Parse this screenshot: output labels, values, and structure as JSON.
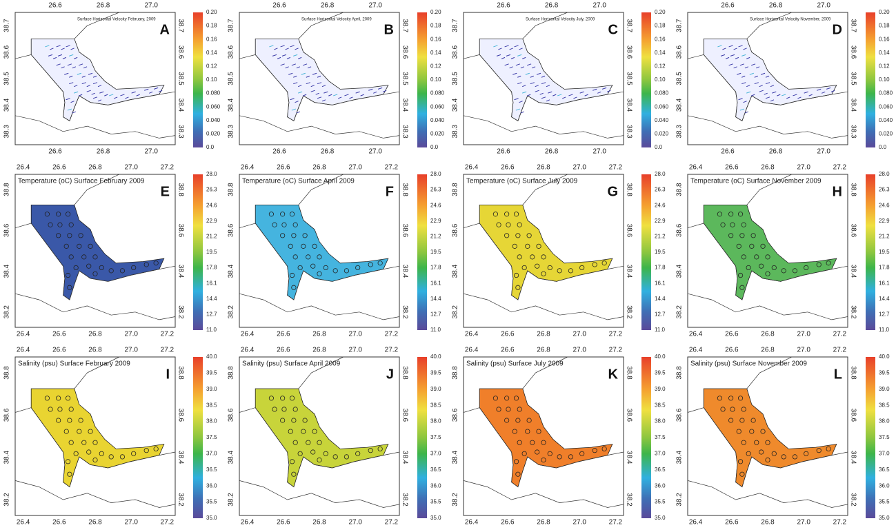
{
  "panels": [
    {
      "letter": "A",
      "title": "Surface Horizontal Velocity February, 2009",
      "lon_ticks_top": [
        "26.6",
        "26.8",
        "27.0"
      ],
      "lon_ticks_bottom": [
        "26.6",
        "26.8",
        "27.0"
      ],
      "lat_ticks_left": [
        "38.7",
        "38.6",
        "38.5",
        "38.4",
        "38.3"
      ],
      "lat_ticks_right": [
        "38.7",
        "38.6",
        "38.5",
        "38.4",
        "38.3"
      ],
      "colorbar_ticks": [
        "0.20",
        "0.18",
        "0.16",
        "0.14",
        "0.12",
        "0.10",
        "0.080",
        "0.060",
        "0.040",
        "0.020",
        "0.0"
      ]
    },
    {
      "letter": "B",
      "title": "Surface Horizontal Velocity April, 2009",
      "lon_ticks_top": [
        "26.6",
        "26.8",
        "27.0"
      ],
      "lon_ticks_bottom": [
        "26.6",
        "26.8",
        "27.0"
      ],
      "lat_ticks_left": [
        "38.7",
        "38.6",
        "38.5",
        "38.4",
        "38.3"
      ],
      "lat_ticks_right": [
        "38.7",
        "38.6",
        "38.5",
        "38.4",
        "38.3"
      ],
      "colorbar_ticks": [
        "0.20",
        "0.18",
        "0.16",
        "0.14",
        "0.12",
        "0.10",
        "0.080",
        "0.060",
        "0.040",
        "0.020",
        "0.0"
      ]
    },
    {
      "letter": "C",
      "title": "Surface Horizontal Velocity July, 2009",
      "lon_ticks_top": [
        "26.6",
        "26.8",
        "27.0"
      ],
      "lon_ticks_bottom": [
        "26.6",
        "26.8",
        "27.0"
      ],
      "lat_ticks_left": [
        "38.7",
        "38.6",
        "38.5",
        "38.4",
        "38.3"
      ],
      "lat_ticks_right": [
        "38.7",
        "38.6",
        "38.5",
        "38.4",
        "38.3"
      ],
      "colorbar_ticks": [
        "0.20",
        "0.18",
        "0.16",
        "0.14",
        "0.12",
        "0.10",
        "0.080",
        "0.060",
        "0.040",
        "0.020",
        "0.0"
      ]
    },
    {
      "letter": "D",
      "title": "Surface Horizontal Velocity November, 2009",
      "lon_ticks_top": [
        "26.6",
        "26.8",
        "27.0"
      ],
      "lon_ticks_bottom": [
        "26.6",
        "26.8",
        "27.0"
      ],
      "lat_ticks_left": [
        "38.7",
        "38.6",
        "38.5",
        "38.4",
        "38.3"
      ],
      "lat_ticks_right": [
        "38.7",
        "38.6",
        "38.5",
        "38.4",
        "38.3"
      ],
      "colorbar_ticks": [
        "0.20",
        "0.18",
        "0.16",
        "0.14",
        "0.12",
        "0.10",
        "0.080",
        "0.060",
        "0.040",
        "0.020",
        "0.0"
      ]
    },
    {
      "letter": "E",
      "title": "Temperature (oC) Surface February 2009",
      "lon_ticks_top": [
        "26.4",
        "26.6",
        "26.8",
        "27.0",
        "27.2"
      ],
      "lon_ticks_bottom": [
        "26.4",
        "26.6",
        "26.8",
        "27.0",
        "27.2"
      ],
      "lat_ticks_left": [
        "38.8",
        "38.6",
        "38.4",
        "38.2"
      ],
      "lat_ticks_right": [
        "38.8",
        "38.6",
        "38.4",
        "38.2"
      ],
      "colorbar_ticks": [
        "28.0",
        "26.3",
        "24.6",
        "22.9",
        "21.2",
        "19.5",
        "17.8",
        "16.1",
        "14.4",
        "12.7",
        "11.0"
      ]
    },
    {
      "letter": "F",
      "title": "Temperature (oC) Surface April 2009",
      "lon_ticks_top": [
        "26.4",
        "26.6",
        "26.8",
        "27.0",
        "27.2"
      ],
      "lon_ticks_bottom": [
        "26.4",
        "26.6",
        "26.8",
        "27.0",
        "27.2"
      ],
      "lat_ticks_left": [
        "38.8",
        "38.6",
        "38.4",
        "38.2"
      ],
      "lat_ticks_right": [
        "38.8",
        "38.6",
        "38.4",
        "38.2"
      ],
      "colorbar_ticks": [
        "28.0",
        "26.3",
        "24.6",
        "22.9",
        "21.2",
        "19.5",
        "17.8",
        "16.1",
        "14.4",
        "12.7",
        "11.0"
      ]
    },
    {
      "letter": "G",
      "title": "Temperature (oC) Surface July 2009",
      "lon_ticks_top": [
        "26.4",
        "26.6",
        "26.8",
        "27.0",
        "27.2"
      ],
      "lon_ticks_bottom": [
        "26.4",
        "26.6",
        "26.8",
        "27.0",
        "27.2"
      ],
      "lat_ticks_left": [
        "38.8",
        "38.6",
        "38.4",
        "38.2"
      ],
      "lat_ticks_right": [
        "38.8",
        "38.6",
        "38.4",
        "38.2"
      ],
      "colorbar_ticks": [
        "28.0",
        "26.3",
        "24.6",
        "22.9",
        "21.2",
        "19.5",
        "17.8",
        "16.1",
        "14.4",
        "12.7",
        "11.0"
      ]
    },
    {
      "letter": "H",
      "title": "Temperature (oC) Surface November 2009",
      "lon_ticks_top": [
        "26.4",
        "26.6",
        "26.8",
        "27.0",
        "27.2"
      ],
      "lon_ticks_bottom": [
        "26.4",
        "26.6",
        "26.8",
        "27.0",
        "27.2"
      ],
      "lat_ticks_left": [
        "38.8",
        "38.6",
        "38.4",
        "38.2"
      ],
      "lat_ticks_right": [
        "38.8",
        "38.6",
        "38.4",
        "38.2"
      ],
      "colorbar_ticks": [
        "28.0",
        "26.3",
        "24.6",
        "22.9",
        "21.2",
        "19.5",
        "17.8",
        "16.1",
        "14.4",
        "12.7",
        "11.0"
      ]
    },
    {
      "letter": "I",
      "title": "Salinity (psu) Surface February 2009",
      "lon_ticks_top": [
        "26.4",
        "26.6",
        "26.8",
        "27.0",
        "27.2"
      ],
      "lon_ticks_bottom": [
        "26.4",
        "26.6",
        "26.8",
        "27.0",
        "27.2"
      ],
      "lat_ticks_left": [
        "38.8",
        "38.6",
        "38.4",
        "38.2"
      ],
      "lat_ticks_right": [
        "38.8",
        "38.6",
        "38.4",
        "38.2"
      ],
      "colorbar_ticks": [
        "40.0",
        "39.5",
        "39.0",
        "38.5",
        "38.0",
        "37.5",
        "37.0",
        "36.5",
        "36.0",
        "35.5",
        "35.0"
      ]
    },
    {
      "letter": "J",
      "title": "Salinity (psu) Surface April 2009",
      "lon_ticks_top": [
        "26.4",
        "26.6",
        "26.8",
        "27.0",
        "27.2"
      ],
      "lon_ticks_bottom": [
        "26.4",
        "26.6",
        "26.8",
        "27.0",
        "27.2"
      ],
      "lat_ticks_left": [
        "38.8",
        "38.6",
        "38.4",
        "38.2"
      ],
      "lat_ticks_right": [
        "38.8",
        "38.6",
        "38.4",
        "38.2"
      ],
      "colorbar_ticks": [
        "40.0",
        "39.5",
        "39.0",
        "38.5",
        "38.0",
        "37.5",
        "37.0",
        "36.5",
        "36.0",
        "35.5",
        "35.0"
      ]
    },
    {
      "letter": "K",
      "title": "Salinity (psu) Surface July 2009",
      "lon_ticks_top": [
        "26.4",
        "26.6",
        "26.8",
        "27.0",
        "27.2"
      ],
      "lon_ticks_bottom": [
        "26.4",
        "26.6",
        "26.8",
        "27.0",
        "27.2"
      ],
      "lat_ticks_left": [
        "38.8",
        "38.6",
        "38.4",
        "38.2"
      ],
      "lat_ticks_right": [
        "38.8",
        "38.6",
        "38.4",
        "38.2"
      ],
      "colorbar_ticks": [
        "40.0",
        "39.5",
        "39.0",
        "38.5",
        "38.0",
        "37.5",
        "37.0",
        "36.5",
        "36.0",
        "35.5",
        "35.0"
      ]
    },
    {
      "letter": "L",
      "title": "Salinity (psu) Surface November 2009",
      "lon_ticks_top": [
        "26.4",
        "26.6",
        "26.8",
        "27.0",
        "27.2"
      ],
      "lon_ticks_bottom": [
        "26.4",
        "26.6",
        "26.8",
        "27.0",
        "27.2"
      ],
      "lat_ticks_left": [
        "38.8",
        "38.6",
        "38.4",
        "38.2"
      ],
      "lat_ticks_right": [
        "38.8",
        "38.6",
        "38.4",
        "38.2"
      ],
      "colorbar_ticks": [
        "40.0",
        "39.5",
        "39.0",
        "38.5",
        "38.0",
        "37.5",
        "37.0",
        "36.5",
        "36.0",
        "35.5",
        "35.0"
      ]
    }
  ]
}
